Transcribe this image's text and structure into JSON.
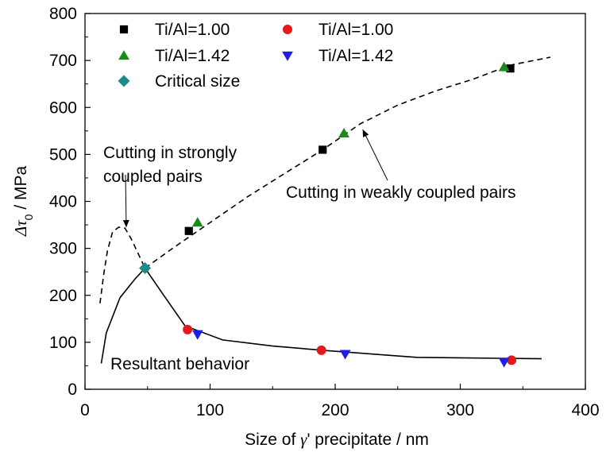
{
  "chart_data": {
    "type": "scatter",
    "xlabel_parts": {
      "prefix": "Size of ",
      "symbol": "γ",
      "suffix": "' precipitate / nm"
    },
    "ylabel_parts": {
      "symbol": "Δτ",
      "subscript": "0",
      "suffix": " / MPa"
    },
    "xlim": [
      0,
      400
    ],
    "ylim": [
      0,
      800
    ],
    "xticks": [
      0,
      100,
      200,
      300,
      400
    ],
    "yticks": [
      0,
      100,
      200,
      300,
      400,
      500,
      600,
      700,
      800
    ],
    "legend": {
      "placement": "top",
      "entries": [
        {
          "label": "Ti/Al=1.00",
          "marker": "square",
          "color": "#000000"
        },
        {
          "label": "Ti/Al=1.00",
          "marker": "circle",
          "color": "#e31a1c"
        },
        {
          "label": "Ti/Al=1.42",
          "marker": "triangle-up",
          "color": "#1a8a1a"
        },
        {
          "label": "Ti/Al=1.42",
          "marker": "triangle-down",
          "color": "#1f1fe0"
        },
        {
          "label": "Critical size",
          "marker": "diamond",
          "color": "#1f8a8a"
        }
      ]
    },
    "series": [
      {
        "name": "Ti/Al=1.00",
        "marker": "square",
        "color": "#000000",
        "points": [
          [
            83,
            337
          ],
          [
            190,
            510
          ],
          [
            340,
            683
          ]
        ]
      },
      {
        "name": "Ti/Al=1.42",
        "marker": "triangle-up",
        "color": "#1a8a1a",
        "points": [
          [
            90,
            355
          ],
          [
            207,
            545
          ],
          [
            335,
            686
          ]
        ]
      },
      {
        "name": "Ti/Al=1.00",
        "marker": "circle",
        "color": "#e31a1c",
        "points": [
          [
            82,
            127
          ],
          [
            189,
            83
          ],
          [
            341,
            62
          ]
        ]
      },
      {
        "name": "Ti/Al=1.42",
        "marker": "triangle-down",
        "color": "#1f1fe0",
        "points": [
          [
            90,
            117
          ],
          [
            208,
            75
          ],
          [
            335,
            58
          ]
        ]
      },
      {
        "name": "Critical size",
        "marker": "diamond",
        "color": "#1f8a8a",
        "points": [
          [
            48,
            258
          ]
        ]
      }
    ],
    "curves": [
      {
        "name": "Cutting in weakly coupled pairs",
        "style": "dashed",
        "points": [
          [
            48,
            258
          ],
          [
            70,
            300
          ],
          [
            100,
            355
          ],
          [
            130,
            410
          ],
          [
            160,
            460
          ],
          [
            190,
            510
          ],
          [
            220,
            565
          ],
          [
            250,
            605
          ],
          [
            280,
            635
          ],
          [
            310,
            660
          ],
          [
            340,
            690
          ],
          [
            372,
            707
          ]
        ]
      },
      {
        "name": "Cutting in strongly coupled pairs",
        "style": "dashed",
        "points": [
          [
            12,
            183
          ],
          [
            15,
            245
          ],
          [
            18,
            295
          ],
          [
            22,
            335
          ],
          [
            27,
            345
          ],
          [
            32,
            343
          ],
          [
            37,
            320
          ],
          [
            42,
            292
          ],
          [
            48,
            258
          ]
        ]
      },
      {
        "name": "Resultant behavior",
        "style": "solid",
        "points": [
          [
            13,
            55
          ],
          [
            17,
            120
          ],
          [
            28,
            195
          ],
          [
            40,
            235
          ],
          [
            48,
            258
          ],
          [
            63,
            200
          ],
          [
            80,
            135
          ],
          [
            110,
            105
          ],
          [
            150,
            92
          ],
          [
            190,
            83
          ],
          [
            230,
            75
          ],
          [
            265,
            68
          ],
          [
            300,
            67
          ],
          [
            330,
            66
          ],
          [
            365,
            65
          ]
        ]
      }
    ],
    "annotations": [
      {
        "lines": [
          "Cutting in strongly",
          "coupled pairs"
        ],
        "arrow_to": [
          33,
          345
        ]
      },
      {
        "lines": [
          "Cutting in weakly coupled pairs"
        ],
        "arrow_to": [
          222,
          553
        ]
      },
      {
        "lines": [
          "Resultant behavior"
        ]
      }
    ]
  }
}
